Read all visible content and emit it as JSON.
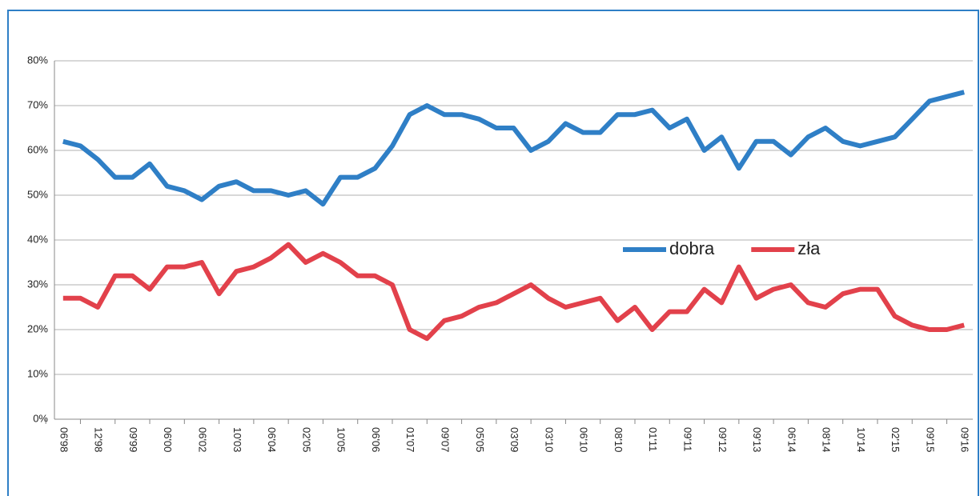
{
  "chart_data": {
    "type": "line",
    "categories": [
      "06'98",
      null,
      "12'98",
      null,
      "09'99",
      null,
      "06'00",
      null,
      "06'02",
      null,
      "10'03",
      null,
      "06'04",
      null,
      "02'05",
      null,
      "10'05",
      null,
      "06'06",
      null,
      "01'07",
      null,
      "09'07",
      null,
      "05'05",
      null,
      "03'09",
      null,
      "03'10",
      null,
      "06'10",
      null,
      "08'10",
      null,
      "01'11",
      null,
      "09'11",
      null,
      "09'12",
      null,
      "09'13",
      null,
      "06'14",
      null,
      "08'14",
      null,
      "10'14",
      null,
      "02'15",
      null,
      "09'15",
      null,
      "09'16"
    ],
    "series": [
      {
        "name": "dobra",
        "color": "#2f7fc6",
        "values": [
          62,
          61,
          58,
          54,
          54,
          57,
          52,
          51,
          49,
          52,
          53,
          51,
          51,
          50,
          51,
          48,
          54,
          54,
          56,
          61,
          68,
          70,
          68,
          68,
          67,
          65,
          65,
          60,
          62,
          66,
          64,
          64,
          68,
          68,
          69,
          65,
          67,
          60,
          63,
          56,
          62,
          62,
          59,
          63,
          65,
          62,
          61,
          62,
          63,
          67,
          71,
          72,
          73
        ]
      },
      {
        "name": "zła",
        "color": "#e2414b",
        "values": [
          27,
          27,
          25,
          32,
          32,
          29,
          34,
          34,
          35,
          28,
          33,
          34,
          36,
          39,
          35,
          37,
          35,
          32,
          32,
          30,
          20,
          18,
          22,
          23,
          25,
          26,
          28,
          30,
          27,
          25,
          26,
          27,
          22,
          25,
          20,
          24,
          24,
          29,
          26,
          34,
          27,
          29,
          30,
          26,
          25,
          28,
          29,
          29,
          23,
          21,
          20,
          20,
          21
        ]
      }
    ],
    "ylim": [
      0,
      80
    ],
    "yticks": [
      {
        "value": 0,
        "label": "0%"
      },
      {
        "value": 10,
        "label": "10%"
      },
      {
        "value": 20,
        "label": "20%"
      },
      {
        "value": 30,
        "label": "30%"
      },
      {
        "value": 40,
        "label": "40%"
      },
      {
        "value": 50,
        "label": "50%"
      },
      {
        "value": 60,
        "label": "60%"
      },
      {
        "value": 70,
        "label": "70%"
      },
      {
        "value": 80,
        "label": "80%"
      }
    ],
    "grid": true,
    "legend": "center-right"
  }
}
